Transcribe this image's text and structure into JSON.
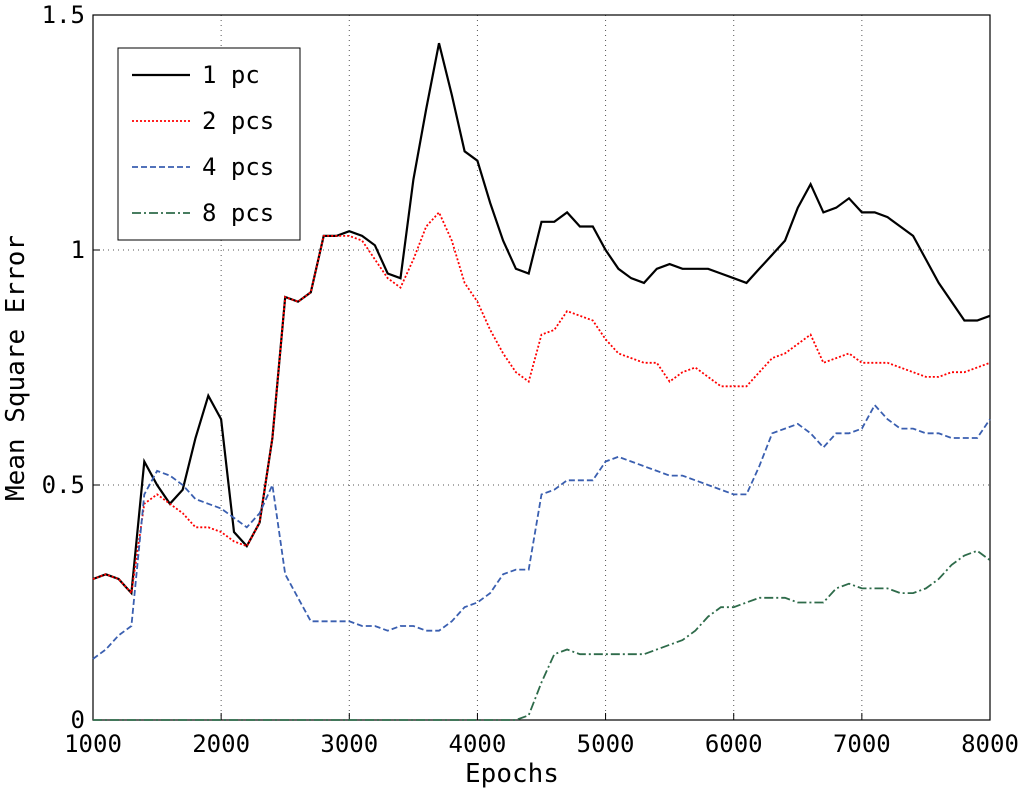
{
  "chart_data": {
    "type": "line",
    "xlabel": "Epochs",
    "ylabel": "Mean Square Error",
    "x": [
      1000,
      1100,
      1200,
      1300,
      1400,
      1500,
      1600,
      1700,
      1800,
      1900,
      2000,
      2100,
      2200,
      2300,
      2400,
      2500,
      2600,
      2700,
      2800,
      2900,
      3000,
      3100,
      3200,
      3300,
      3400,
      3500,
      3600,
      3700,
      3800,
      3900,
      4000,
      4100,
      4200,
      4300,
      4400,
      4500,
      4600,
      4700,
      4800,
      4900,
      5000,
      5100,
      5200,
      5300,
      5400,
      5500,
      5600,
      5700,
      5800,
      5900,
      6000,
      6100,
      6200,
      6300,
      6400,
      6500,
      6600,
      6700,
      6800,
      6900,
      7000,
      7100,
      7200,
      7300,
      7400,
      7500,
      7600,
      7700,
      7800,
      7900,
      8000
    ],
    "series": [
      {
        "name": "1 pc",
        "color": "#000000",
        "style": "solid",
        "values": [
          0.3,
          0.31,
          0.3,
          0.27,
          0.55,
          0.5,
          0.46,
          0.49,
          0.6,
          0.69,
          0.64,
          0.4,
          0.37,
          0.42,
          0.6,
          0.9,
          0.89,
          0.91,
          1.03,
          1.03,
          1.04,
          1.03,
          1.01,
          0.95,
          0.94,
          1.15,
          1.3,
          1.44,
          1.33,
          1.21,
          1.19,
          1.1,
          1.02,
          0.96,
          0.95,
          1.06,
          1.06,
          1.08,
          1.05,
          1.05,
          1.0,
          0.96,
          0.94,
          0.93,
          0.96,
          0.97,
          0.96,
          0.96,
          0.96,
          0.95,
          0.94,
          0.93,
          0.96,
          0.99,
          1.02,
          1.09,
          1.14,
          1.08,
          1.09,
          1.11,
          1.08,
          1.08,
          1.07,
          1.05,
          1.03,
          0.98,
          0.93,
          0.89,
          0.85,
          0.85,
          0.86
        ]
      },
      {
        "name": "2 pcs",
        "color": "#ff0000",
        "style": "dotted",
        "values": [
          0.3,
          0.31,
          0.3,
          0.27,
          0.46,
          0.48,
          0.46,
          0.44,
          0.41,
          0.41,
          0.4,
          0.38,
          0.37,
          0.42,
          0.6,
          0.9,
          0.89,
          0.91,
          1.03,
          1.03,
          1.03,
          1.02,
          0.98,
          0.94,
          0.92,
          0.98,
          1.05,
          1.08,
          1.02,
          0.93,
          0.89,
          0.83,
          0.78,
          0.74,
          0.72,
          0.82,
          0.83,
          0.87,
          0.86,
          0.85,
          0.81,
          0.78,
          0.77,
          0.76,
          0.76,
          0.72,
          0.74,
          0.75,
          0.73,
          0.71,
          0.71,
          0.71,
          0.74,
          0.77,
          0.78,
          0.8,
          0.82,
          0.76,
          0.77,
          0.78,
          0.76,
          0.76,
          0.76,
          0.75,
          0.74,
          0.73,
          0.73,
          0.74,
          0.74,
          0.75,
          0.76
        ]
      },
      {
        "name": "4 pcs",
        "color": "#3a5fb0",
        "style": "dashed",
        "values": [
          0.13,
          0.15,
          0.18,
          0.2,
          0.48,
          0.53,
          0.52,
          0.5,
          0.47,
          0.46,
          0.45,
          0.43,
          0.41,
          0.44,
          0.5,
          0.31,
          0.26,
          0.21,
          0.21,
          0.21,
          0.21,
          0.2,
          0.2,
          0.19,
          0.2,
          0.2,
          0.19,
          0.19,
          0.21,
          0.24,
          0.25,
          0.27,
          0.31,
          0.32,
          0.32,
          0.48,
          0.49,
          0.51,
          0.51,
          0.51,
          0.55,
          0.56,
          0.55,
          0.54,
          0.53,
          0.52,
          0.52,
          0.51,
          0.5,
          0.49,
          0.48,
          0.48,
          0.54,
          0.61,
          0.62,
          0.63,
          0.61,
          0.58,
          0.61,
          0.61,
          0.62,
          0.67,
          0.64,
          0.62,
          0.62,
          0.61,
          0.61,
          0.6,
          0.6,
          0.6,
          0.64
        ]
      },
      {
        "name": "8 pcs",
        "color": "#2e6b4a",
        "style": "dashdot",
        "values": [
          0,
          0,
          0,
          0,
          0,
          0,
          0,
          0,
          0,
          0,
          0,
          0,
          0,
          0,
          0,
          0,
          0,
          0,
          0,
          0,
          0,
          0,
          0,
          0,
          0,
          0,
          0,
          0,
          0,
          0,
          0,
          0,
          0,
          0,
          0.01,
          0.08,
          0.14,
          0.15,
          0.14,
          0.14,
          0.14,
          0.14,
          0.14,
          0.14,
          0.15,
          0.16,
          0.17,
          0.19,
          0.22,
          0.24,
          0.24,
          0.25,
          0.26,
          0.26,
          0.26,
          0.25,
          0.25,
          0.25,
          0.28,
          0.29,
          0.28,
          0.28,
          0.28,
          0.27,
          0.27,
          0.28,
          0.3,
          0.33,
          0.35,
          0.36,
          0.34
        ]
      }
    ],
    "xlim": [
      1000,
      8000
    ],
    "xticks": [
      1000,
      2000,
      3000,
      4000,
      5000,
      6000,
      7000,
      8000
    ],
    "ylim": [
      0,
      1.5
    ],
    "yticks": [
      0,
      0.5,
      1,
      1.5
    ],
    "grid": true,
    "legend": "upper left"
  }
}
